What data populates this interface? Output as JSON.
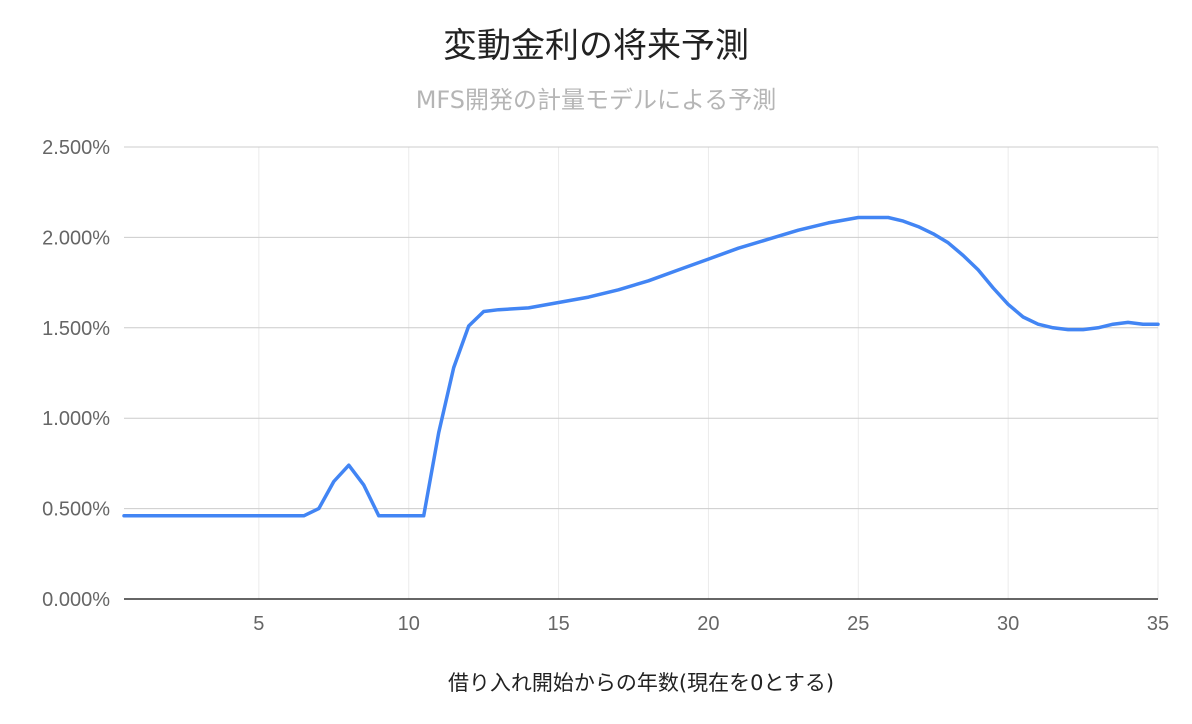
{
  "chart_data": {
    "type": "line",
    "title": "変動金利の将来予測",
    "subtitle": "MFS開発の計量モデルによる予測",
    "xlabel": "借り入れ開始からの年数(現在を0とする)",
    "ylabel": "",
    "xlim": [
      0.5,
      35
    ],
    "ylim": [
      0,
      0.025
    ],
    "x_ticks": [
      5,
      10,
      15,
      20,
      25,
      30,
      35
    ],
    "x_tick_labels": [
      "5",
      "10",
      "15",
      "20",
      "25",
      "30",
      "35"
    ],
    "y_ticks": [
      0,
      0.005,
      0.01,
      0.015,
      0.02,
      0.025
    ],
    "y_tick_labels": [
      "0.000%",
      "0.500%",
      "1.000%",
      "1.500%",
      "2.000%",
      "2.500%"
    ],
    "grid": true,
    "legend": "none",
    "series": [
      {
        "color": "#4285f4",
        "x": [
          0.5,
          1,
          2,
          3,
          4,
          5,
          6,
          6.5,
          7,
          7.5,
          8,
          8.5,
          9,
          9.5,
          10,
          10.5,
          11,
          11.5,
          12,
          12.5,
          13,
          14,
          15,
          16,
          17,
          18,
          19,
          20,
          21,
          22,
          23,
          24,
          25,
          25.5,
          26,
          26.5,
          27,
          27.5,
          28,
          28.5,
          29,
          29.5,
          30,
          30.5,
          31,
          31.5,
          32,
          32.5,
          33,
          33.5,
          34,
          34.5,
          35
        ],
        "y": [
          0.0046,
          0.0046,
          0.0046,
          0.0046,
          0.0046,
          0.0046,
          0.0046,
          0.0046,
          0.005,
          0.0065,
          0.0074,
          0.0063,
          0.0046,
          0.0046,
          0.0046,
          0.0046,
          0.0092,
          0.0128,
          0.0151,
          0.0159,
          0.016,
          0.0161,
          0.0164,
          0.0167,
          0.0171,
          0.0176,
          0.0182,
          0.0188,
          0.0194,
          0.0199,
          0.0204,
          0.0208,
          0.0211,
          0.0211,
          0.0211,
          0.0209,
          0.0206,
          0.0202,
          0.0197,
          0.019,
          0.0182,
          0.0172,
          0.0163,
          0.0156,
          0.0152,
          0.015,
          0.0149,
          0.0149,
          0.015,
          0.0152,
          0.0153,
          0.0152,
          0.0152
        ]
      }
    ]
  }
}
